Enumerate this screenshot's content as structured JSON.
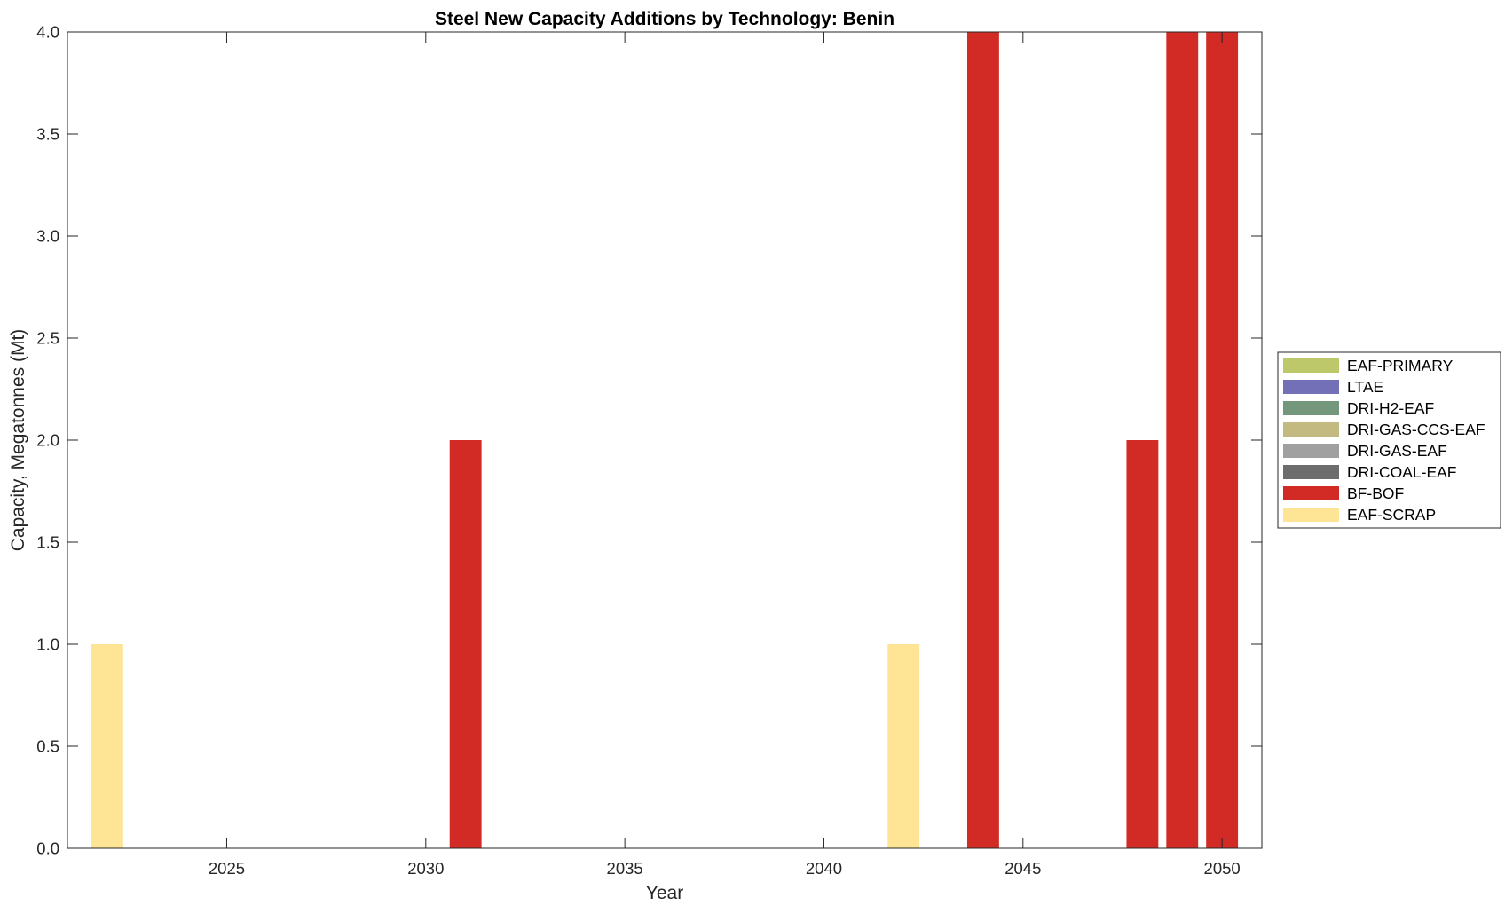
{
  "chart_data": {
    "type": "bar",
    "stacked": true,
    "title": "Steel New Capacity Additions by Technology: Benin",
    "xlabel": "Year",
    "ylabel": "Capacity, Megatonnes (Mt)",
    "xlim": [
      2021,
      2051
    ],
    "ylim": [
      0,
      4
    ],
    "xticks": [
      2025,
      2030,
      2035,
      2040,
      2045,
      2050
    ],
    "yticks": [
      "0.0",
      "0.5",
      "1.0",
      "1.5",
      "2.0",
      "2.5",
      "3.0",
      "3.5",
      "4.0"
    ],
    "grid": false,
    "legend_position": "right",
    "x": [
      2022,
      2031,
      2042,
      2044,
      2048,
      2049,
      2050
    ],
    "series": [
      {
        "name": "EAF-PRIMARY",
        "color": "#bcc86a",
        "values": [
          0,
          0,
          0,
          0,
          0,
          0,
          0
        ]
      },
      {
        "name": "LTAE",
        "color": "#7470b8",
        "values": [
          0,
          0,
          0,
          0,
          0,
          0,
          0
        ]
      },
      {
        "name": "DRI-H2-EAF",
        "color": "#74967a",
        "values": [
          0,
          0,
          0,
          0,
          0,
          0,
          0
        ]
      },
      {
        "name": "DRI-GAS-CCS-EAF",
        "color": "#c2ba80",
        "values": [
          0,
          0,
          0,
          0,
          0,
          0,
          0
        ]
      },
      {
        "name": "DRI-GAS-EAF",
        "color": "#a0a0a0",
        "values": [
          0,
          0,
          0,
          0,
          0,
          0,
          0
        ]
      },
      {
        "name": "DRI-COAL-EAF",
        "color": "#6d6d6d",
        "values": [
          0,
          0,
          0,
          0,
          0,
          0,
          0
        ]
      },
      {
        "name": "BF-BOF",
        "color": "#d22b26",
        "values": [
          0,
          2,
          0,
          4,
          2,
          4,
          4
        ]
      },
      {
        "name": "EAF-SCRAP",
        "color": "#fee596",
        "values": [
          1,
          0,
          1,
          0,
          0,
          0,
          0
        ]
      }
    ]
  }
}
